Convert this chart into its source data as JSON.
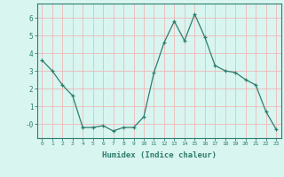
{
  "x": [
    0,
    1,
    2,
    3,
    4,
    5,
    6,
    7,
    8,
    9,
    10,
    11,
    12,
    13,
    14,
    15,
    16,
    17,
    18,
    19,
    20,
    21,
    22,
    23
  ],
  "y": [
    3.6,
    3.0,
    2.2,
    1.6,
    -0.2,
    -0.2,
    -0.1,
    -0.4,
    -0.2,
    -0.2,
    0.4,
    2.9,
    4.6,
    5.8,
    4.7,
    6.2,
    4.9,
    3.3,
    3.0,
    2.9,
    2.5,
    2.2,
    0.7,
    -0.3
  ],
  "line_color": "#2e7d6e",
  "marker": "+",
  "marker_size": 3,
  "bg_color": "#d8f5f0",
  "grid_color": "#f0b8b8",
  "xlabel": "Humidex (Indice chaleur)",
  "ylim": [
    -0.8,
    6.8
  ],
  "xlim": [
    -0.5,
    23.5
  ],
  "yticks": [
    0,
    1,
    2,
    3,
    4,
    5,
    6
  ],
  "ytick_labels": [
    "-0",
    "1",
    "2",
    "3",
    "4",
    "5",
    "6"
  ],
  "xticks": [
    0,
    1,
    2,
    3,
    4,
    5,
    6,
    7,
    8,
    9,
    10,
    11,
    12,
    13,
    14,
    15,
    16,
    17,
    18,
    19,
    20,
    21,
    22,
    23
  ]
}
